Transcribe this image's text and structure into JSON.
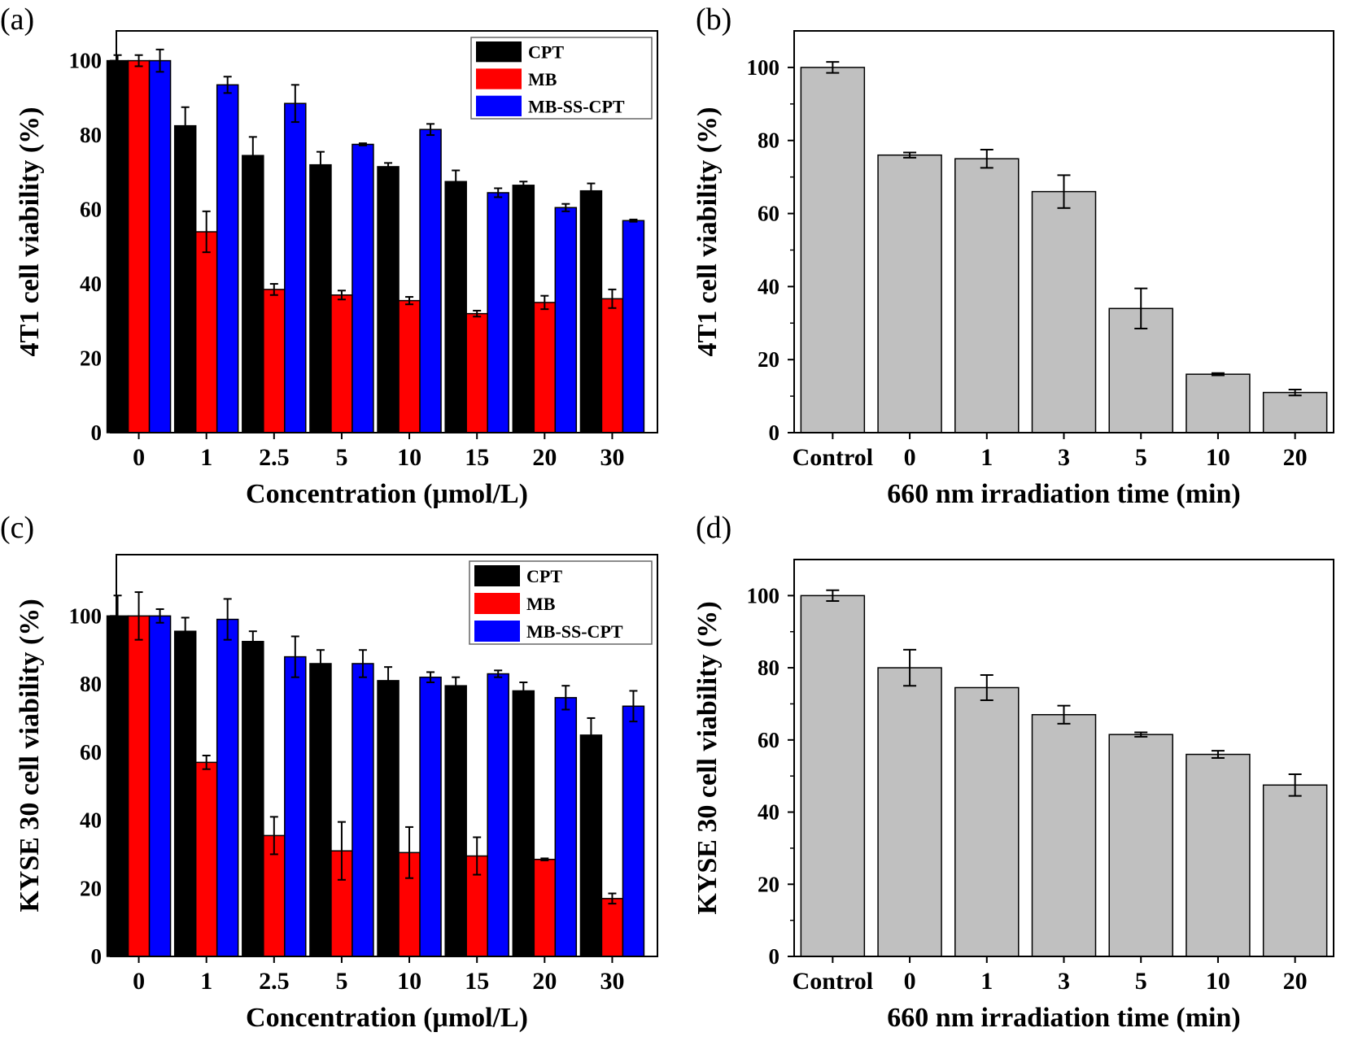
{
  "chart_data": [
    {
      "panel": "(a)",
      "type": "bar",
      "title": "",
      "xlabel": "Concentration (μmol/L)",
      "ylabel": "4T1 cell viability (%)",
      "ylim": [
        0,
        108
      ],
      "yticks": [
        0,
        20,
        40,
        60,
        80,
        100
      ],
      "categories": [
        "0",
        "1",
        "2.5",
        "5",
        "10",
        "15",
        "20",
        "30"
      ],
      "legend_position": "top-right",
      "series": [
        {
          "name": "CPT",
          "color": "#000000",
          "values": [
            100,
            82.5,
            74.5,
            72,
            71.5,
            67.5,
            66.5,
            65
          ],
          "errors": [
            1.5,
            5,
            5,
            3.5,
            1,
            3,
            1,
            2
          ]
        },
        {
          "name": "MB",
          "color": "#ff0000",
          "values": [
            100,
            54,
            38.5,
            37,
            35.5,
            32,
            35,
            36
          ],
          "errors": [
            1.5,
            5.5,
            1.5,
            1.2,
            1,
            0.8,
            1.8,
            2.5
          ]
        },
        {
          "name": "MB-SS-CPT",
          "color": "#0000ff",
          "values": [
            100,
            93.5,
            88.5,
            77.5,
            81.5,
            64.5,
            60.5,
            57
          ],
          "errors": [
            3,
            2.2,
            5,
            0.3,
            1.5,
            1.2,
            1,
            0.3
          ]
        }
      ]
    },
    {
      "panel": "(b)",
      "type": "bar",
      "title": "",
      "xlabel": "660 nm irradiation time (min)",
      "ylabel": "4T1 cell viability (%)",
      "ylim": [
        0,
        110
      ],
      "yticks": [
        0,
        20,
        40,
        60,
        80,
        100
      ],
      "categories": [
        "Control",
        "0",
        "1",
        "3",
        "5",
        "10",
        "20"
      ],
      "series": [
        {
          "name": "viability",
          "color": "#c0c0c0",
          "values": [
            100,
            76,
            75,
            66,
            34,
            16,
            11
          ],
          "errors": [
            1.5,
            0.7,
            2.5,
            4.5,
            5.5,
            0.3,
            0.8
          ]
        }
      ]
    },
    {
      "panel": "(c)",
      "type": "bar",
      "title": "",
      "xlabel": "Concentration (μmol/L)",
      "ylabel": "KYSE 30 cell viability (%)",
      "ylim": [
        0,
        118
      ],
      "yticks": [
        0,
        20,
        40,
        60,
        80,
        100
      ],
      "categories": [
        "0",
        "1",
        "2.5",
        "5",
        "10",
        "15",
        "20",
        "30"
      ],
      "legend_position": "top-right",
      "series": [
        {
          "name": "CPT",
          "color": "#000000",
          "values": [
            100,
            95.5,
            92.5,
            86,
            81,
            79.5,
            78,
            65
          ],
          "errors": [
            6,
            4,
            3,
            4,
            4,
            2.5,
            2.5,
            5
          ]
        },
        {
          "name": "MB",
          "color": "#ff0000",
          "values": [
            100,
            57,
            35.5,
            31,
            30.5,
            29.5,
            28.5,
            17
          ],
          "errors": [
            7,
            2,
            5.5,
            8.5,
            7.5,
            5.5,
            0.3,
            1.5
          ]
        },
        {
          "name": "MB-SS-CPT",
          "color": "#0000ff",
          "values": [
            100,
            99,
            88,
            86,
            82,
            83,
            76,
            73.5
          ],
          "errors": [
            2,
            6,
            6,
            4,
            1.5,
            1,
            3.5,
            4.5
          ]
        }
      ]
    },
    {
      "panel": "(d)",
      "type": "bar",
      "title": "",
      "xlabel": "660 nm irradiation time (min)",
      "ylabel": "KYSE 30 cell viability (%)",
      "ylim": [
        0,
        110
      ],
      "yticks": [
        0,
        20,
        40,
        60,
        80,
        100
      ],
      "categories": [
        "Control",
        "0",
        "1",
        "3",
        "5",
        "10",
        "20"
      ],
      "series": [
        {
          "name": "viability",
          "color": "#c0c0c0",
          "values": [
            100,
            80,
            74.5,
            67,
            61.5,
            56,
            47.5
          ],
          "errors": [
            1.5,
            5,
            3.5,
            2.5,
            0.6,
            1,
            3
          ]
        }
      ]
    }
  ]
}
